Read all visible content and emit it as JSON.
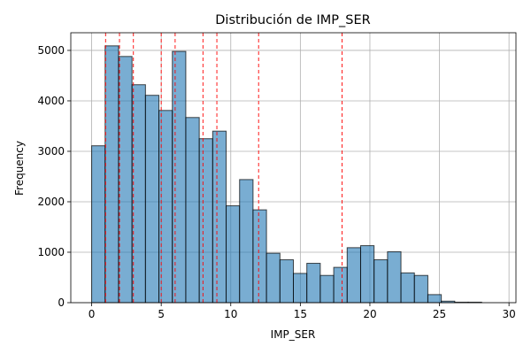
{
  "chart_data": {
    "type": "bar",
    "title": "Distribución de IMP_SER",
    "xlabel": "IMP_SER",
    "ylabel": "Frequency",
    "xlim": [
      -1.5,
      30.5
    ],
    "ylim": [
      0,
      5350
    ],
    "xticks": [
      0,
      5,
      10,
      15,
      20,
      25,
      30
    ],
    "yticks": [
      0,
      1000,
      2000,
      3000,
      4000,
      5000
    ],
    "grid": true,
    "legend": "none",
    "bin_width": 0.967,
    "bins": [
      {
        "start": 0.0,
        "value": 3110
      },
      {
        "start": 0.967,
        "value": 5090
      },
      {
        "start": 1.933,
        "value": 4880
      },
      {
        "start": 2.9,
        "value": 4320
      },
      {
        "start": 3.867,
        "value": 4110
      },
      {
        "start": 4.833,
        "value": 3810
      },
      {
        "start": 5.8,
        "value": 4980
      },
      {
        "start": 6.767,
        "value": 3670
      },
      {
        "start": 7.733,
        "value": 3250
      },
      {
        "start": 8.7,
        "value": 3400
      },
      {
        "start": 9.667,
        "value": 1920
      },
      {
        "start": 10.633,
        "value": 2440
      },
      {
        "start": 11.6,
        "value": 1840
      },
      {
        "start": 12.567,
        "value": 980
      },
      {
        "start": 13.533,
        "value": 850
      },
      {
        "start": 14.5,
        "value": 580
      },
      {
        "start": 15.467,
        "value": 780
      },
      {
        "start": 16.433,
        "value": 540
      },
      {
        "start": 17.4,
        "value": 700
      },
      {
        "start": 18.367,
        "value": 1090
      },
      {
        "start": 19.333,
        "value": 1130
      },
      {
        "start": 20.3,
        "value": 850
      },
      {
        "start": 21.267,
        "value": 1010
      },
      {
        "start": 22.233,
        "value": 590
      },
      {
        "start": 23.2,
        "value": 540
      },
      {
        "start": 24.167,
        "value": 160
      },
      {
        "start": 25.133,
        "value": 30
      },
      {
        "start": 26.1,
        "value": 10
      },
      {
        "start": 27.067,
        "value": 10
      }
    ],
    "reference_lines_x": [
      1,
      2,
      3,
      5,
      6,
      8,
      9,
      12,
      18
    ],
    "colors": {
      "bar_fill": "#1f77b4",
      "bar_edge": "#000000",
      "reference_line": "#ff0000",
      "grid": "#b0b0b0"
    }
  }
}
